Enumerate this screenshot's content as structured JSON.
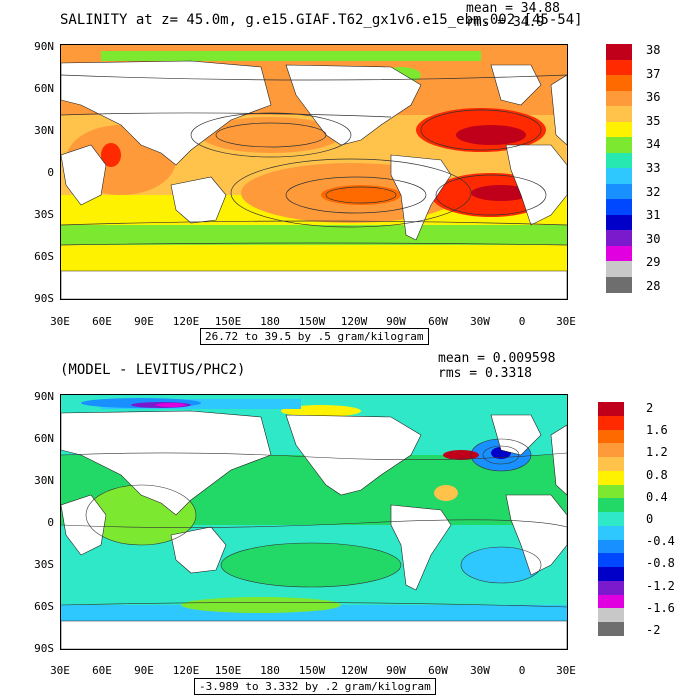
{
  "top": {
    "title": "SALINITY at z=  45.0m, g.e15.GIAF.T62_gx1v6.e15_ebm.002 [45-54]",
    "mean": "mean = 34.88",
    "rms": "rms = 34.9",
    "range": "26.72 to 39.5 by .5 gram/kilogram",
    "colorbar_labels": [
      "38",
      "37",
      "36",
      "35",
      "34",
      "33",
      "32",
      "31",
      "30",
      "29",
      "28"
    ],
    "colorbar_colors": [
      "#c0001a",
      "#ff2a00",
      "#ff6a00",
      "#ff9a3a",
      "#ffc24a",
      "#fff200",
      "#7ce830",
      "#27e8b0",
      "#2ec8ff",
      "#1890ff",
      "#0048ff",
      "#0000c8",
      "#7a1acc",
      "#e000e0",
      "#c8c8c8",
      "#6e6e6e"
    ]
  },
  "bottom": {
    "title": "(MODEL - LEVITUS/PHC2)",
    "mean": "mean = 0.009598",
    "rms": "rms = 0.3318",
    "range": "-3.989 to 3.332 by .2 gram/kilogram",
    "colorbar_labels": [
      "2",
      "1.6",
      "1.2",
      "0.8",
      "0.4",
      "0",
      "-0.4",
      "-0.8",
      "-1.2",
      "-1.6",
      "-2"
    ],
    "colorbar_colors": [
      "#c0001a",
      "#ff2a00",
      "#ff6a00",
      "#ff9a3a",
      "#ffc24a",
      "#fff200",
      "#7ce830",
      "#22d866",
      "#2ee8c8",
      "#2ec8ff",
      "#1890ff",
      "#0048ff",
      "#0000c8",
      "#7a1acc",
      "#e000e0",
      "#c8c8c8",
      "#6e6e6e"
    ]
  },
  "axes": {
    "lat_labels": [
      "90N",
      "60N",
      "30N",
      "0",
      "30S",
      "60S",
      "90S"
    ],
    "lon_labels": [
      "30E",
      "60E",
      "90E",
      "120E",
      "150E",
      "180",
      "150W",
      "120W",
      "90W",
      "60W",
      "30W",
      "0",
      "30E"
    ]
  }
}
